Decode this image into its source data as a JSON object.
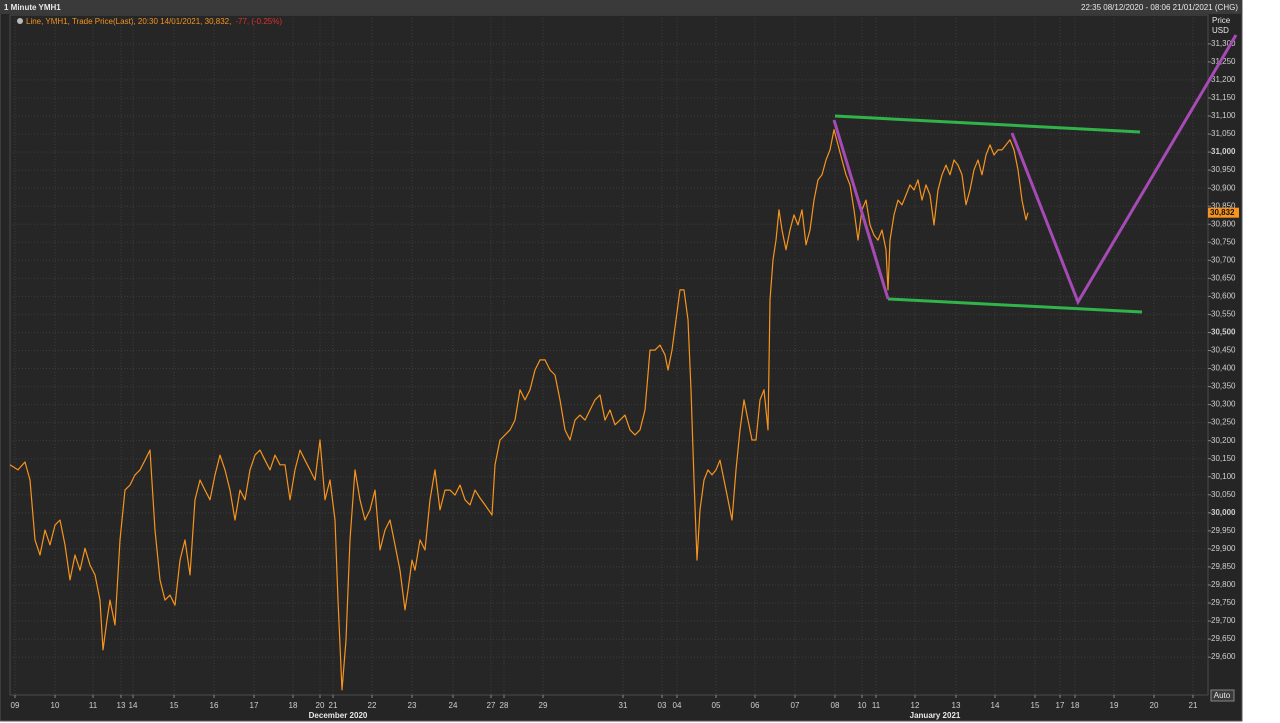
{
  "chart_data": {
    "type": "line",
    "title": "1 Minute YMH1",
    "range_label": "22:35 08/12/2020 - 08:06 21/01/2021 (CHG)",
    "y_axis_label": [
      "Price",
      "USD"
    ],
    "change": "-77, (-0.25%)",
    "auto_button": "Auto",
    "grid": true,
    "last_price": {
      "value": 30832,
      "label": "30,832"
    },
    "xlim": [
      0,
      1198
    ],
    "ylim": [
      29495,
      31380
    ],
    "month_labels": [
      {
        "value": 328,
        "label": "December 2020"
      },
      {
        "value": 925,
        "label": "January 2021"
      }
    ],
    "xticks": [
      {
        "value": 5,
        "label": "09"
      },
      {
        "value": 45,
        "label": "10"
      },
      {
        "value": 83,
        "label": "11"
      },
      {
        "value": 111,
        "label": "13"
      },
      {
        "value": 123,
        "label": "14"
      },
      {
        "value": 164,
        "label": "15"
      },
      {
        "value": 204,
        "label": "16"
      },
      {
        "value": 244,
        "label": "17"
      },
      {
        "value": 283,
        "label": "18"
      },
      {
        "value": 310,
        "label": "20"
      },
      {
        "value": 323,
        "label": "21"
      },
      {
        "value": 362,
        "label": "22"
      },
      {
        "value": 402,
        "label": "23"
      },
      {
        "value": 443,
        "label": "24"
      },
      {
        "value": 481,
        "label": "27"
      },
      {
        "value": 494,
        "label": "28"
      },
      {
        "value": 533,
        "label": "29"
      },
      {
        "value": 613,
        "label": "31"
      },
      {
        "value": 652,
        "label": "03"
      },
      {
        "value": 667,
        "label": "04"
      },
      {
        "value": 706,
        "label": "05"
      },
      {
        "value": 745,
        "label": "06"
      },
      {
        "value": 785,
        "label": "07"
      },
      {
        "value": 825,
        "label": "08"
      },
      {
        "value": 852,
        "label": "10"
      },
      {
        "value": 866,
        "label": "11"
      },
      {
        "value": 905,
        "label": "12"
      },
      {
        "value": 946,
        "label": "13"
      },
      {
        "value": 985,
        "label": "14"
      },
      {
        "value": 1025,
        "label": "15"
      },
      {
        "value": 1050,
        "label": "17"
      },
      {
        "value": 1065,
        "label": "18"
      },
      {
        "value": 1104,
        "label": "19"
      },
      {
        "value": 1144,
        "label": "20"
      },
      {
        "value": 1183,
        "label": "21"
      }
    ],
    "yticks": [
      {
        "value": 29600,
        "label": "29,600"
      },
      {
        "value": 29650,
        "label": "29,650"
      },
      {
        "value": 29700,
        "label": "29,700"
      },
      {
        "value": 29750,
        "label": "29,750"
      },
      {
        "value": 29800,
        "label": "29,800"
      },
      {
        "value": 29850,
        "label": "29,850"
      },
      {
        "value": 29900,
        "label": "29,900"
      },
      {
        "value": 29950,
        "label": "29,950"
      },
      {
        "value": 30000,
        "label": "30,000"
      },
      {
        "value": 30050,
        "label": "30,050"
      },
      {
        "value": 30100,
        "label": "30,100"
      },
      {
        "value": 30150,
        "label": "30,150"
      },
      {
        "value": 30200,
        "label": "30,200"
      },
      {
        "value": 30250,
        "label": "30,250"
      },
      {
        "value": 30300,
        "label": "30,300"
      },
      {
        "value": 30350,
        "label": "30,350"
      },
      {
        "value": 30400,
        "label": "30,400"
      },
      {
        "value": 30450,
        "label": "30,450"
      },
      {
        "value": 30500,
        "label": "30,500"
      },
      {
        "value": 30550,
        "label": "30,550"
      },
      {
        "value": 30600,
        "label": "30,600"
      },
      {
        "value": 30650,
        "label": "30,650"
      },
      {
        "value": 30700,
        "label": "30,700"
      },
      {
        "value": 30750,
        "label": "30,750"
      },
      {
        "value": 30800,
        "label": "30,800"
      },
      {
        "value": 30850,
        "label": "30,850"
      },
      {
        "value": 30900,
        "label": "30,900"
      },
      {
        "value": 30950,
        "label": "30,950"
      },
      {
        "value": 31000,
        "label": "31,000"
      },
      {
        "value": 31050,
        "label": "31,050"
      },
      {
        "value": 31100,
        "label": "31,100"
      },
      {
        "value": 31150,
        "label": "31,150"
      },
      {
        "value": 31200,
        "label": "31,200"
      },
      {
        "value": 31250,
        "label": "31,250"
      },
      {
        "value": 31300,
        "label": "31,300"
      }
    ],
    "series": [
      {
        "name": "Line, YMH1, Trade Price(Last), 20:30 14/01/2021, 30,832,",
        "color": "#f7941d",
        "x": [
          0,
          8,
          15,
          20,
          25,
          30,
          35,
          40,
          45,
          50,
          55,
          60,
          65,
          70,
          75,
          80,
          85,
          90,
          93,
          97,
          100,
          105,
          110,
          115,
          120,
          125,
          130,
          135,
          140,
          145,
          150,
          155,
          160,
          165,
          170,
          175,
          180,
          185,
          190,
          195,
          200,
          205,
          210,
          215,
          220,
          225,
          230,
          235,
          240,
          245,
          250,
          255,
          260,
          265,
          270,
          275,
          280,
          285,
          290,
          295,
          300,
          305,
          310,
          315,
          320,
          325,
          328,
          332,
          336,
          340,
          345,
          350,
          355,
          360,
          365,
          370,
          375,
          380,
          385,
          390,
          395,
          398,
          402,
          405,
          410,
          415,
          420,
          425,
          430,
          435,
          440,
          445,
          450,
          455,
          460,
          465,
          470,
          475,
          482,
          485,
          490,
          495,
          500,
          505,
          510,
          515,
          520,
          525,
          530,
          535,
          540,
          545,
          550,
          555,
          560,
          565,
          570,
          575,
          580,
          585,
          590,
          595,
          600,
          605,
          610,
          615,
          620,
          625,
          630,
          635,
          640,
          645,
          650,
          655,
          658,
          662,
          666,
          670,
          674,
          678,
          681,
          684,
          687,
          690,
          694,
          698,
          702,
          706,
          710,
          714,
          718,
          722,
          726,
          730,
          734,
          738,
          742,
          746,
          750,
          754,
          758,
          760,
          763,
          766,
          769,
          772,
          776,
          780,
          784,
          788,
          792,
          796,
          800,
          804,
          808,
          812,
          816,
          820,
          824,
          828,
          832,
          836,
          840,
          844,
          848,
          852,
          856,
          860,
          864,
          868,
          872,
          876,
          878,
          880,
          884,
          888,
          892,
          896,
          900,
          904,
          908,
          912,
          916,
          920,
          924,
          928,
          932,
          936,
          940,
          944,
          948,
          952,
          956,
          960,
          964,
          968,
          972,
          976,
          980,
          984,
          988,
          992,
          996,
          1000,
          1004,
          1008,
          1012,
          1016,
          1018
        ],
        "values": [
          30133,
          30119,
          30141,
          30091,
          29925,
          29883,
          29952,
          29911,
          29966,
          29980,
          29911,
          29814,
          29883,
          29841,
          29902,
          29855,
          29828,
          29758,
          29620,
          29703,
          29758,
          29689,
          29925,
          30063,
          30077,
          30105,
          30119,
          30146,
          30174,
          29952,
          29814,
          29758,
          29772,
          29744,
          29869,
          29925,
          29828,
          30036,
          30091,
          30063,
          30036,
          30105,
          30160,
          30119,
          30063,
          29980,
          30063,
          30036,
          30119,
          30160,
          30174,
          30146,
          30119,
          30160,
          30133,
          30133,
          30036,
          30119,
          30174,
          30146,
          30119,
          30091,
          30202,
          30036,
          30091,
          29980,
          29758,
          29509,
          29647,
          29925,
          30119,
          30036,
          29980,
          30008,
          30063,
          29897,
          29952,
          29980,
          29911,
          29841,
          29731,
          29786,
          29869,
          29841,
          29925,
          29897,
          30036,
          30119,
          30008,
          30063,
          30063,
          30049,
          30077,
          30036,
          30022,
          30063,
          30041,
          30022,
          29994,
          30133,
          30202,
          30216,
          30230,
          30257,
          30341,
          30313,
          30341,
          30396,
          30424,
          30424,
          30396,
          30382,
          30313,
          30230,
          30202,
          30257,
          30271,
          30257,
          30285,
          30313,
          30327,
          30257,
          30285,
          30244,
          30257,
          30271,
          30230,
          30216,
          30230,
          30285,
          30451,
          30451,
          30465,
          30438,
          30396,
          30451,
          30535,
          30618,
          30618,
          30535,
          30341,
          30091,
          29869,
          30008,
          30091,
          30119,
          30105,
          30119,
          30146,
          30091,
          30036,
          29980,
          30119,
          30230,
          30313,
          30257,
          30202,
          30202,
          30313,
          30341,
          30230,
          30590,
          30701,
          30756,
          30840,
          30784,
          30729,
          30784,
          30826,
          30798,
          30840,
          30743,
          30784,
          30867,
          30923,
          30937,
          30978,
          31006,
          31062,
          31020,
          30978,
          30937,
          30909,
          30840,
          30756,
          30840,
          30867,
          30798,
          30770,
          30756,
          30784,
          30729,
          30618,
          30756,
          30826,
          30867,
          30854,
          30881,
          30909,
          30895,
          30923,
          30867,
          30909,
          30881,
          30798,
          30895,
          30937,
          30964,
          30937,
          30978,
          30964,
          30937,
          30854,
          30895,
          30951,
          30978,
          30937,
          30992,
          31020,
          30992,
          31006,
          31006,
          31020,
          31034,
          31006,
          30951,
          30867,
          30812,
          30832
        ]
      }
    ]
  }
}
